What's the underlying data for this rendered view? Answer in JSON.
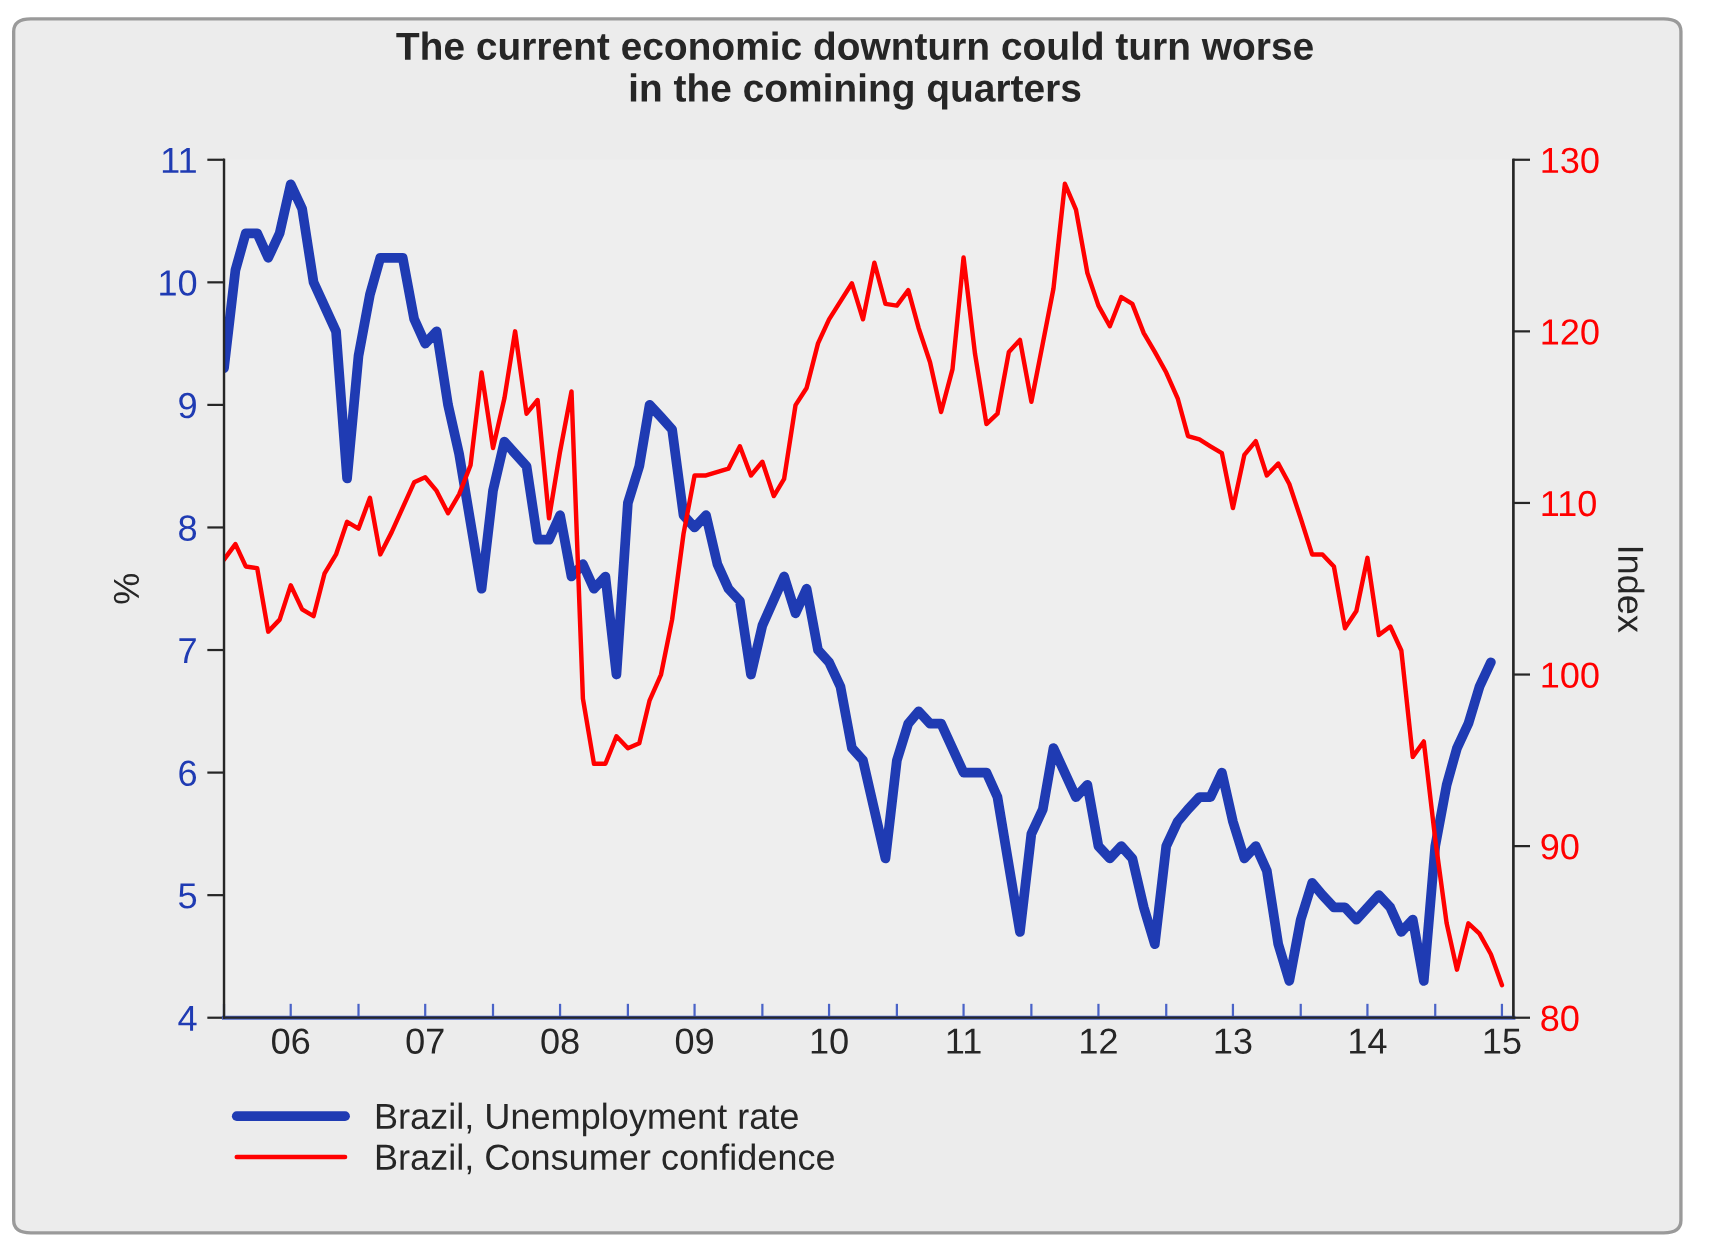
{
  "chart_data": {
    "type": "line",
    "title": "The current economic downturn could turn worse\nin the comining quarters",
    "ylabel": "%",
    "y2label": "Index",
    "xlim": [
      "2006-01",
      "2015-08"
    ],
    "xticks": [
      {
        "value": "2006-01",
        "label": null
      },
      {
        "value": "2006-07",
        "label": "06"
      },
      {
        "value": "2007-01",
        "label": null
      },
      {
        "value": "2007-07",
        "label": "07"
      },
      {
        "value": "2008-01",
        "label": null
      },
      {
        "value": "2008-07",
        "label": "08"
      },
      {
        "value": "2009-01",
        "label": null
      },
      {
        "value": "2009-07",
        "label": "09"
      },
      {
        "value": "2010-01",
        "label": null
      },
      {
        "value": "2010-07",
        "label": "10"
      },
      {
        "value": "2011-01",
        "label": null
      },
      {
        "value": "2011-07",
        "label": "11"
      },
      {
        "value": "2012-01",
        "label": null
      },
      {
        "value": "2012-07",
        "label": "12"
      },
      {
        "value": "2013-01",
        "label": null
      },
      {
        "value": "2013-07",
        "label": "13"
      },
      {
        "value": "2014-01",
        "label": null
      },
      {
        "value": "2014-07",
        "label": "14"
      },
      {
        "value": "2015-01",
        "label": null
      },
      {
        "value": "2015-07",
        "label": "15"
      }
    ],
    "ylim": [
      4,
      11
    ],
    "yticks": [
      4,
      5,
      6,
      7,
      8,
      9,
      10,
      11
    ],
    "y2lim": [
      80,
      130
    ],
    "y2ticks": [
      80,
      90,
      100,
      110,
      120,
      130
    ],
    "legend": "bottom left",
    "line_style": "solid",
    "series": [
      {
        "name": "Brazil, Unemployment rate",
        "color": "#1f3bb3",
        "x": [
          "2006-01",
          "2006-02",
          "2006-03",
          "2006-04",
          "2006-05",
          "2006-06",
          "2006-07",
          "2006-08",
          "2006-09",
          "2006-11",
          "2006-12",
          "2007-01",
          "2007-02",
          "2007-03",
          "2007-05",
          "2007-06",
          "2007-07",
          "2007-08",
          "2007-09",
          "2007-10",
          "2007-12",
          "2008-01",
          "2008-02",
          "2008-04",
          "2008-05",
          "2008-06",
          "2008-07",
          "2008-08",
          "2008-09",
          "2008-10",
          "2008-11",
          "2008-12",
          "2009-01",
          "2009-02",
          "2009-03",
          "2009-04",
          "2009-05",
          "2009-06",
          "2009-07",
          "2009-08",
          "2009-09",
          "2009-10",
          "2009-11",
          "2009-12",
          "2010-01",
          "2010-03",
          "2010-04",
          "2010-05",
          "2010-06",
          "2010-07",
          "2010-08",
          "2010-09",
          "2010-10",
          "2010-12",
          "2011-01",
          "2011-02",
          "2011-03",
          "2011-04",
          "2011-05",
          "2011-07",
          "2011-09",
          "2011-10",
          "2011-12",
          "2012-01",
          "2012-02",
          "2012-03",
          "2012-05",
          "2012-06",
          "2012-07",
          "2012-08",
          "2012-09",
          "2012-10",
          "2012-11",
          "2012-12",
          "2013-01",
          "2013-02",
          "2013-03",
          "2013-04",
          "2013-05",
          "2013-06",
          "2013-07",
          "2013-08",
          "2013-09",
          "2013-10",
          "2013-11",
          "2013-12",
          "2014-01",
          "2014-02",
          "2014-03",
          "2014-04",
          "2014-05",
          "2014-06",
          "2014-08",
          "2014-09",
          "2014-10",
          "2014-11",
          "2014-12",
          "2015-01",
          "2015-02",
          "2015-03",
          "2015-04",
          "2015-05",
          "2015-06"
        ],
        "values": [
          9.3,
          10.1,
          10.4,
          10.4,
          10.2,
          10.4,
          10.8,
          10.6,
          10.0,
          9.6,
          8.4,
          9.4,
          9.9,
          10.2,
          10.2,
          9.7,
          9.5,
          9.6,
          9.0,
          8.6,
          7.5,
          8.3,
          8.7,
          8.5,
          7.9,
          7.9,
          8.1,
          7.6,
          7.7,
          7.5,
          7.6,
          6.8,
          8.2,
          8.5,
          9.0,
          8.9,
          8.8,
          8.1,
          8.0,
          8.1,
          7.7,
          7.5,
          7.4,
          6.8,
          7.2,
          7.6,
          7.3,
          7.5,
          7.0,
          6.9,
          6.7,
          6.2,
          6.1,
          5.3,
          6.1,
          6.4,
          6.5,
          6.4,
          6.4,
          6.0,
          6.0,
          5.8,
          4.7,
          5.5,
          5.7,
          6.2,
          5.8,
          5.9,
          5.4,
          5.3,
          5.4,
          5.3,
          4.9,
          4.6,
          5.4,
          5.6,
          5.7,
          5.8,
          5.8,
          6.0,
          5.6,
          5.3,
          5.4,
          5.2,
          4.6,
          4.3,
          4.8,
          5.1,
          5.0,
          4.9,
          4.9,
          4.8,
          5.0,
          4.9,
          4.7,
          4.8,
          4.3,
          5.4,
          5.9,
          6.2,
          6.4,
          6.7,
          6.9
        ]
      },
      {
        "name": "Brazil, Consumer confidence",
        "color": "#ff0000",
        "axis": "y2",
        "x": [
          "2006-01",
          "2006-02",
          "2006-03",
          "2006-04",
          "2006-05",
          "2006-06",
          "2006-07",
          "2006-08",
          "2006-09",
          "2006-10",
          "2006-11",
          "2006-12",
          "2007-01",
          "2007-02",
          "2007-03",
          "2007-04",
          "2007-06",
          "2007-07",
          "2007-08",
          "2007-09",
          "2007-10",
          "2007-11",
          "2007-12",
          "2008-01",
          "2008-02",
          "2008-03",
          "2008-04",
          "2008-05",
          "2008-06",
          "2008-07",
          "2008-08",
          "2008-09",
          "2008-10",
          "2008-11",
          "2008-12",
          "2009-01",
          "2009-02",
          "2009-03",
          "2009-04",
          "2009-05",
          "2009-06",
          "2009-07",
          "2009-08",
          "2009-10",
          "2009-11",
          "2009-12",
          "2010-01",
          "2010-02",
          "2010-03",
          "2010-04",
          "2010-05",
          "2010-06",
          "2010-07",
          "2010-09",
          "2010-10",
          "2010-11",
          "2010-12",
          "2011-01",
          "2011-02",
          "2011-03",
          "2011-04",
          "2011-05",
          "2011-06",
          "2011-07",
          "2011-08",
          "2011-09",
          "2011-10",
          "2011-11",
          "2011-12",
          "2012-01",
          "2012-02",
          "2012-03",
          "2012-04",
          "2012-05",
          "2012-06",
          "2012-07",
          "2012-08",
          "2012-09",
          "2012-10",
          "2012-11",
          "2012-12",
          "2013-01",
          "2013-02",
          "2013-03",
          "2013-04",
          "2013-05",
          "2013-06",
          "2013-07",
          "2013-08",
          "2013-09",
          "2013-10",
          "2013-11",
          "2013-12",
          "2014-01",
          "2014-02",
          "2014-03",
          "2014-04",
          "2014-05",
          "2014-06",
          "2014-07",
          "2014-08",
          "2014-09",
          "2014-10",
          "2014-11",
          "2014-12",
          "2015-01",
          "2015-02",
          "2015-03",
          "2015-04",
          "2015-05",
          "2015-06",
          "2015-07"
        ],
        "values": [
          106.7,
          107.6,
          106.3,
          106.2,
          102.5,
          103.2,
          105.2,
          103.8,
          103.4,
          105.9,
          107.0,
          108.9,
          108.5,
          110.3,
          107.0,
          108.3,
          111.2,
          111.5,
          110.7,
          109.4,
          110.5,
          112.2,
          117.6,
          113.2,
          116.1,
          120.0,
          115.2,
          116.0,
          109.1,
          113.0,
          116.5,
          98.6,
          94.8,
          94.8,
          96.4,
          95.7,
          96.0,
          98.5,
          100.0,
          103.2,
          108.2,
          111.6,
          111.6,
          112.0,
          113.3,
          111.6,
          112.4,
          110.4,
          111.4,
          115.7,
          116.7,
          119.3,
          120.7,
          122.8,
          120.7,
          124.0,
          121.6,
          121.5,
          122.4,
          120.2,
          118.2,
          115.3,
          117.8,
          124.3,
          118.7,
          114.6,
          115.2,
          118.8,
          119.5,
          115.9,
          119.3,
          122.5,
          128.6,
          127.1,
          123.4,
          121.5,
          120.3,
          122.0,
          121.6,
          119.9,
          118.8,
          117.6,
          116.1,
          113.9,
          113.7,
          113.3,
          112.9,
          109.7,
          112.8,
          113.6,
          111.6,
          112.3,
          111.1,
          109.1,
          107.0,
          107.0,
          106.3,
          102.7,
          103.7,
          106.8,
          102.3,
          102.8,
          101.4,
          95.2,
          96.1,
          90.4,
          85.5,
          82.8,
          85.5,
          84.9,
          83.7,
          81.9
        ]
      }
    ]
  }
}
